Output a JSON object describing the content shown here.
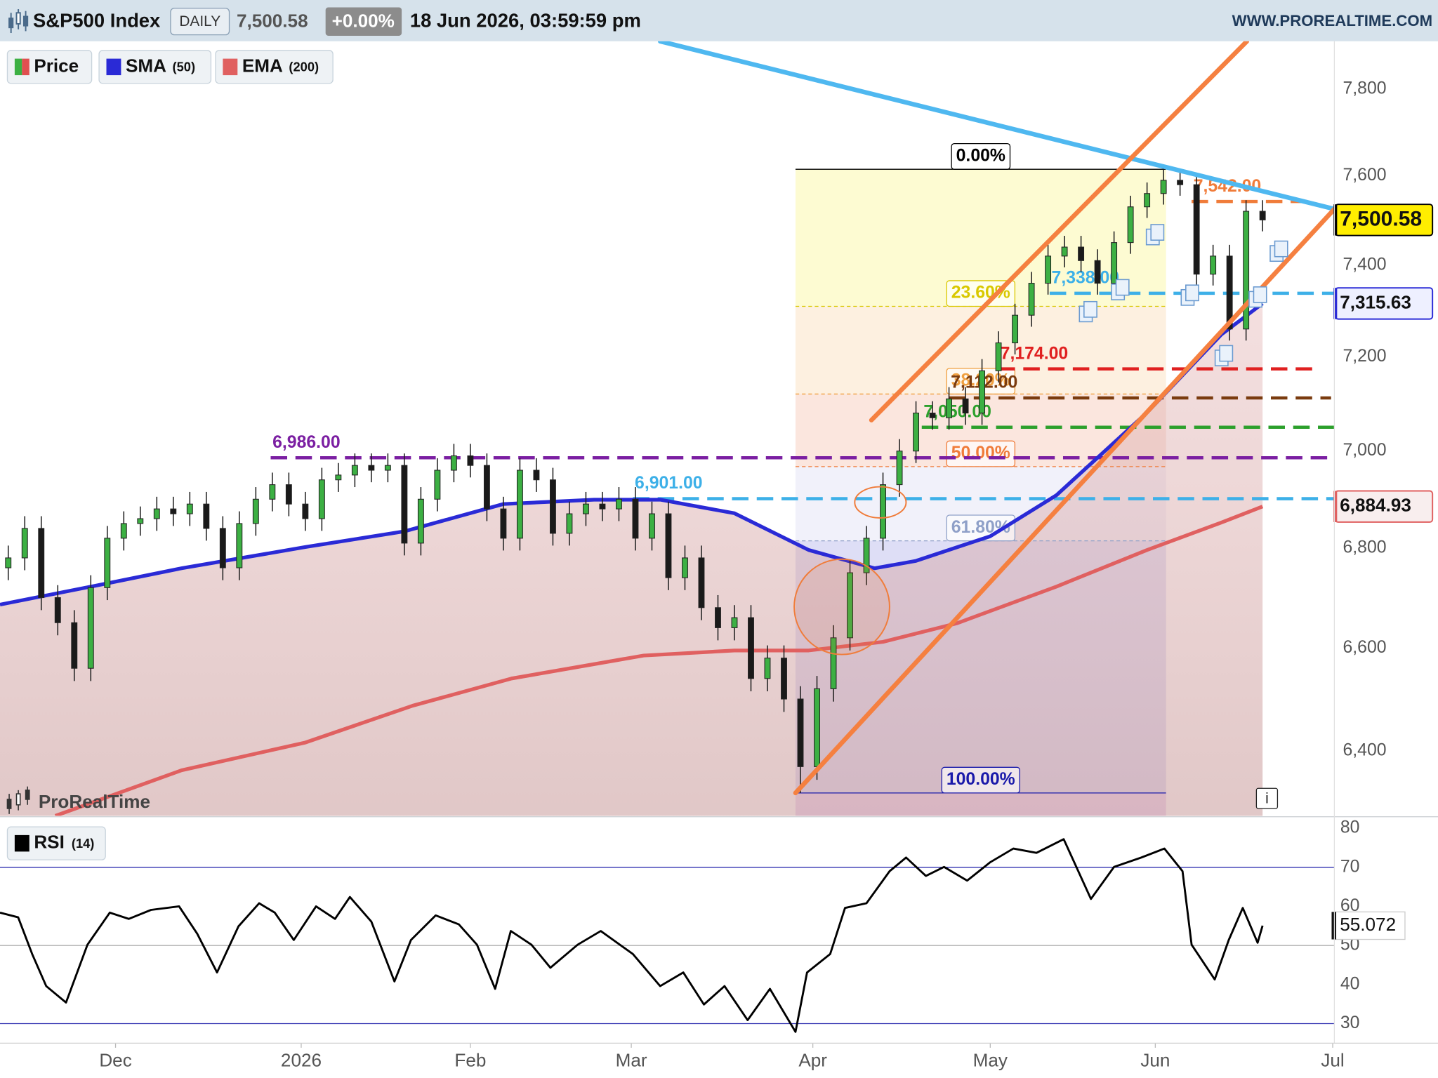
{
  "header": {
    "title": "S&P500 Index",
    "interval": "DAILY",
    "last": "7,500.58",
    "change": "+0.00%",
    "datetime": "18 Jun 2026, 03:59:59 pm",
    "site": "WWW.PROREALTIME.COM"
  },
  "watermark": "ProRealTime",
  "info": "i",
  "chart_data": [
    {
      "type": "candlestick",
      "log": true,
      "xlim": [
        0,
        161.7
      ],
      "xticks": [
        {
          "value": 14,
          "label": "Dec"
        },
        {
          "value": 36.5,
          "label": "2026"
        },
        {
          "value": 57,
          "label": "Feb"
        },
        {
          "value": 76.5,
          "label": "Mar"
        },
        {
          "value": 98.5,
          "label": "Apr"
        },
        {
          "value": 120,
          "label": "May"
        },
        {
          "value": 140,
          "label": "Jun"
        },
        {
          "value": 161.5,
          "label": "Jul"
        }
      ],
      "ylim": [
        6277,
        7912
      ],
      "yticks": [
        {
          "value": 6400,
          "label": "6,400"
        },
        {
          "value": 6600,
          "label": "6,600"
        },
        {
          "value": 6800,
          "label": "6,800"
        },
        {
          "value": 7000,
          "label": "7,000"
        },
        {
          "value": 7200,
          "label": "7,200"
        },
        {
          "value": 7400,
          "label": "7,400"
        },
        {
          "value": 7600,
          "label": "7,600"
        },
        {
          "value": 7800,
          "label": "7,800"
        }
      ],
      "candles": {
        "name": "Price",
        "up_color": "#3cb043",
        "down_color": "#1a1a1a",
        "x": [
          1,
          3,
          5,
          7,
          9,
          11,
          13,
          15,
          17,
          19,
          21,
          23,
          25,
          27,
          29,
          31,
          33,
          35,
          37,
          39,
          41,
          43,
          45,
          47,
          49,
          51,
          53,
          55,
          57,
          59,
          61,
          63,
          65,
          67,
          69,
          71,
          73,
          75,
          77,
          79,
          81,
          83,
          85,
          87,
          89,
          91,
          93,
          95,
          97,
          99,
          101,
          103,
          105,
          107,
          109,
          111,
          113,
          115,
          117,
          119,
          121,
          123,
          125,
          127,
          129,
          131,
          133,
          135,
          137,
          139,
          141,
          143,
          145,
          147,
          149,
          151,
          153
        ],
        "open": [
          6760,
          6780,
          6840,
          6700,
          6650,
          6560,
          6720,
          6820,
          6850,
          6860,
          6880,
          6870,
          6890,
          6840,
          6760,
          6850,
          6900,
          6930,
          6890,
          6860,
          6940,
          6950,
          6970,
          6960,
          6970,
          6810,
          6900,
          6960,
          6990,
          6970,
          6880,
          6820,
          6960,
          6940,
          6830,
          6870,
          6890,
          6880,
          6900,
          6820,
          6870,
          6740,
          6780,
          6680,
          6640,
          6660,
          6540,
          6580,
          6500,
          6370,
          6520,
          6620,
          6750,
          6820,
          6930,
          7000,
          7080,
          7070,
          7110,
          7080,
          7170,
          7230,
          7290,
          7360,
          7420,
          7440,
          7410,
          7360,
          7450,
          7530,
          7560,
          7590,
          7580,
          7380,
          7420,
          7260,
          7520
        ],
        "high": [
          6805,
          6865,
          6865,
          6725,
          6675,
          6745,
          6845,
          6875,
          6885,
          6905,
          6905,
          6915,
          6915,
          6865,
          6875,
          6925,
          6955,
          6955,
          6915,
          6965,
          6975,
          6995,
          6995,
          6995,
          6995,
          6925,
          6985,
          7015,
          7015,
          6995,
          6905,
          6985,
          6985,
          6965,
          6895,
          6915,
          6915,
          6925,
          6925,
          6895,
          6895,
          6805,
          6805,
          6705,
          6685,
          6685,
          6605,
          6605,
          6525,
          6545,
          6645,
          6775,
          6845,
          6955,
          7025,
          7105,
          7105,
          7135,
          7135,
          7195,
          7255,
          7315,
          7385,
          7445,
          7465,
          7465,
          7435,
          7475,
          7555,
          7585,
          7615,
          7615,
          7605,
          7445,
          7445,
          7545,
          7545
        ],
        "low": [
          6735,
          6755,
          6675,
          6625,
          6535,
          6535,
          6695,
          6795,
          6825,
          6835,
          6845,
          6845,
          6815,
          6735,
          6735,
          6825,
          6875,
          6865,
          6835,
          6835,
          6915,
          6925,
          6935,
          6935,
          6785,
          6785,
          6875,
          6935,
          6945,
          6855,
          6795,
          6795,
          6915,
          6805,
          6805,
          6845,
          6855,
          6855,
          6795,
          6795,
          6715,
          6715,
          6655,
          6615,
          6615,
          6515,
          6515,
          6475,
          6320,
          6345,
          6495,
          6595,
          6725,
          6795,
          6905,
          6975,
          7045,
          7045,
          7055,
          7055,
          7145,
          7205,
          7265,
          7335,
          7395,
          7385,
          7335,
          7335,
          7425,
          7505,
          7535,
          7555,
          7355,
          7355,
          7235,
          7235,
          7475
        ],
        "close": [
          6780,
          6840,
          6700,
          6650,
          6560,
          6720,
          6820,
          6850,
          6860,
          6880,
          6870,
          6890,
          6840,
          6760,
          6850,
          6900,
          6930,
          6890,
          6860,
          6940,
          6950,
          6970,
          6960,
          6970,
          6810,
          6900,
          6960,
          6990,
          6970,
          6880,
          6820,
          6960,
          6940,
          6830,
          6870,
          6890,
          6880,
          6900,
          6820,
          6870,
          6740,
          6780,
          6680,
          6640,
          6660,
          6540,
          6580,
          6500,
          6370,
          6520,
          6620,
          6750,
          6820,
          6930,
          7000,
          7080,
          7070,
          7110,
          7080,
          7170,
          7230,
          7290,
          7360,
          7420,
          7440,
          7410,
          7360,
          7450,
          7530,
          7560,
          7590,
          7580,
          7380,
          7420,
          7260,
          7520,
          7500.58
        ]
      },
      "series": [
        {
          "name": "SMA",
          "period": "(50)",
          "color": "#2a2ad6",
          "x": [
            0,
            11,
            22,
            37,
            49,
            61,
            72,
            80,
            89,
            98,
            106,
            111,
            120,
            128,
            139,
            148,
            153
          ],
          "values": [
            6686,
            6722,
            6759,
            6802,
            6834,
            6890,
            6899,
            6899,
            6871,
            6796,
            6759,
            6774,
            6824,
            6908,
            7081,
            7248,
            7315.63
          ]
        },
        {
          "name": "EMA",
          "period": "(200)",
          "color": "#e06060",
          "x": [
            6.7,
            22,
            37,
            50,
            62,
            78,
            89,
            98,
            107,
            116,
            128,
            139,
            148,
            153
          ],
          "values": [
            6277,
            6363,
            6416,
            6487,
            6540,
            6585,
            6595,
            6595,
            6612,
            6649,
            6722,
            6796,
            6852,
            6884.93
          ]
        }
      ],
      "tags": [
        {
          "value": 7500.58,
          "label": "7,500.58",
          "fill": "#ffee00",
          "color": "#000000"
        },
        {
          "value": 7315.63,
          "label": "7,315.63",
          "fill": "#eef0ff",
          "color": "#2a2ad6"
        },
        {
          "value": 6884.93,
          "label": "6,884.93",
          "fill": "#f8eeee",
          "color": "#e06060"
        }
      ],
      "levels": [
        {
          "value": 6986,
          "label": "6,986.00",
          "color": "#7b1fa2",
          "x0": 32.8,
          "x1": 161.7
        },
        {
          "value": 6901,
          "label": "6,901.00",
          "color": "#3db0e8",
          "x0": 76.7,
          "x1": 161.7
        },
        {
          "value": 7050,
          "label": "7,050.00",
          "color": "#2ca02c",
          "x0": 111.7,
          "x1": 161.7
        },
        {
          "value": 7112,
          "label": "7,112.00",
          "color": "#7a3b0f",
          "x0": 115,
          "x1": 161.3
        },
        {
          "value": 7174,
          "label": "7,174.00",
          "color": "#e02020",
          "x0": 121,
          "x1": 159.4
        },
        {
          "value": 7338,
          "label": "7,338.00",
          "color": "#3db0e8",
          "x0": 127.2,
          "x1": 161.7
        },
        {
          "value": 7542,
          "label": "7,542.00",
          "color": "#f07c3a",
          "x0": 144.4,
          "x1": 159.4
        }
      ],
      "fib": {
        "x0": 96.4,
        "x1": 141.3,
        "high": 7615,
        "low": 6320,
        "levels": [
          {
            "value": 0,
            "label": "0.00%",
            "color": "#000000",
            "fill": "#fdfbd2"
          },
          {
            "value": 23.6,
            "label": "23.60%",
            "color": "#d9c800",
            "fill": "#fdf0e0"
          },
          {
            "value": 38.2,
            "label": "38.20%",
            "color": "#f0a040",
            "fill": "#fbe6de"
          },
          {
            "value": 50,
            "label": "50.00%",
            "color": "#f07c3a",
            "fill": "#f1f1fa"
          },
          {
            "value": 61.8,
            "label": "61.80%",
            "color": "#8fa0c8",
            "fill": "#dedef6"
          },
          {
            "value": 100,
            "label": "100.00%",
            "color": "#1a1aaa",
            "fill": "#ecd6f2"
          }
        ]
      },
      "trendlines": [
        {
          "color": "#4fb8f0",
          "points": [
            [
              80,
              7912
            ],
            [
              161.7,
              7525
            ]
          ]
        },
        {
          "color": "#f58040",
          "points": [
            [
              96.4,
              6320
            ],
            [
              161.7,
              7525
            ]
          ]
        },
        {
          "color": "#f58040",
          "points": [
            [
              105.6,
              7065
            ],
            [
              151.1,
              7912
            ]
          ]
        }
      ]
    },
    {
      "type": "line",
      "name": "RSI",
      "period": "(14)",
      "color": "#000000",
      "ylim": [
        25,
        82
      ],
      "yticks": [
        30,
        40,
        50,
        60,
        70,
        80
      ],
      "ref_lines": [
        {
          "value": 70,
          "color": "#3030b0"
        },
        {
          "value": 50,
          "color": "#b0b0b0"
        },
        {
          "value": 30,
          "color": "#3030b0"
        }
      ],
      "x": [
        0,
        2.2,
        3.9,
        5.6,
        8,
        10.6,
        13.3,
        15.6,
        18.3,
        21.7,
        23.9,
        26.3,
        28.9,
        31.4,
        33.3,
        35.6,
        38.3,
        40.6,
        42.4,
        45,
        47.8,
        49.8,
        52.8,
        55.6,
        57.8,
        60,
        61.9,
        64.4,
        66.7,
        70,
        72.8,
        76.7,
        80,
        82.8,
        85.3,
        87.8,
        90.6,
        93.3,
        96.4,
        97.8,
        100.6,
        102.4,
        105,
        107.8,
        109.8,
        112.2,
        114.4,
        117.2,
        120,
        122.8,
        125.6,
        128.9,
        132.2,
        135,
        138.3,
        141.1,
        143.3,
        144.4,
        147.2,
        148.9,
        150.6,
        152.4,
        153
      ],
      "values": [
        58.4,
        57.2,
        47.8,
        39.6,
        35.4,
        50.2,
        58.4,
        56.8,
        59.1,
        60,
        53,
        43.1,
        54.9,
        60.8,
        58.4,
        51.4,
        60,
        56.8,
        62.4,
        56.1,
        40.8,
        51.4,
        57.7,
        55.4,
        50.2,
        38.9,
        53.7,
        50.2,
        44.3,
        50.2,
        53.7,
        47.8,
        39.6,
        43.1,
        34.9,
        39.6,
        30.9,
        38.9,
        27.9,
        43.1,
        47.8,
        59.6,
        60.8,
        69,
        72.5,
        67.8,
        70.1,
        66.6,
        71.3,
        74.8,
        73.7,
        77.2,
        61.9,
        70.1,
        72.5,
        74.8,
        69,
        50.2,
        41.3,
        51.4,
        59.6,
        50.7,
        55.072
      ]
    }
  ]
}
